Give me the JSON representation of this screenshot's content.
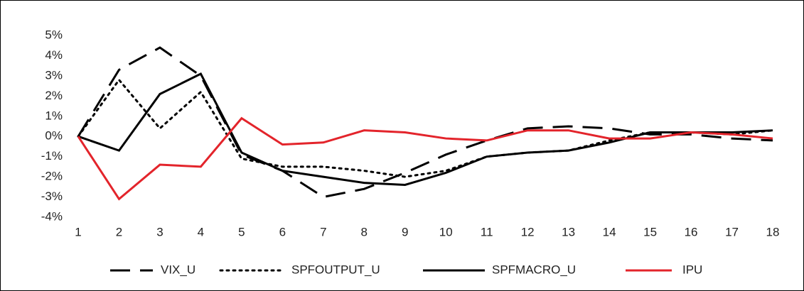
{
  "chart_data": {
    "type": "line",
    "x": [
      1,
      2,
      3,
      4,
      5,
      6,
      7,
      8,
      9,
      10,
      11,
      12,
      13,
      14,
      15,
      16,
      17,
      18
    ],
    "xlim": [
      1,
      18
    ],
    "xticks": [
      1,
      2,
      3,
      4,
      5,
      6,
      7,
      8,
      9,
      10,
      11,
      12,
      13,
      14,
      15,
      16,
      17,
      18
    ],
    "ylim": [
      -4,
      5
    ],
    "yticks": [
      {
        "value": -4,
        "label": "-4%"
      },
      {
        "value": -3,
        "label": "-3%"
      },
      {
        "value": -2,
        "label": "-2%"
      },
      {
        "value": -1,
        "label": "-1%"
      },
      {
        "value": 0,
        "label": "0%"
      },
      {
        "value": 1,
        "label": "1%"
      },
      {
        "value": 2,
        "label": "2%"
      },
      {
        "value": 3,
        "label": "3%"
      },
      {
        "value": 4,
        "label": "4%"
      },
      {
        "value": 5,
        "label": "5%"
      }
    ],
    "legend": "bottom",
    "series": [
      {
        "name": "VIX_U",
        "color": "#000000",
        "dash": "dashed",
        "values": [
          0,
          3.3,
          4.4,
          3.0,
          -0.9,
          -1.7,
          -3.0,
          -2.6,
          -1.8,
          -0.9,
          -0.2,
          0.4,
          0.5,
          0.4,
          0.1,
          0.1,
          -0.1,
          -0.2
        ]
      },
      {
        "name": "SPFOUTPUT_U",
        "color": "#000000",
        "dash": "dotted",
        "values": [
          0,
          2.8,
          0.4,
          2.2,
          -1.1,
          -1.5,
          -1.5,
          -1.7,
          -2.0,
          -1.7,
          -1.0,
          -0.8,
          -0.7,
          -0.2,
          0.2,
          0.2,
          0.1,
          0.3
        ]
      },
      {
        "name": "SPFMACRO_U",
        "color": "#000000",
        "dash": "solid",
        "values": [
          0,
          -0.7,
          2.1,
          3.1,
          -0.8,
          -1.7,
          -2.0,
          -2.3,
          -2.4,
          -1.8,
          -1.0,
          -0.8,
          -0.7,
          -0.3,
          0.2,
          0.2,
          0.2,
          0.3
        ]
      },
      {
        "name": "IPU",
        "color": "#e3242b",
        "dash": "solid",
        "values": [
          0,
          -3.1,
          -1.4,
          -1.5,
          0.9,
          -0.4,
          -0.3,
          0.3,
          0.2,
          -0.1,
          -0.2,
          0.3,
          0.3,
          -0.1,
          -0.1,
          0.2,
          0.1,
          -0.1
        ]
      }
    ]
  }
}
